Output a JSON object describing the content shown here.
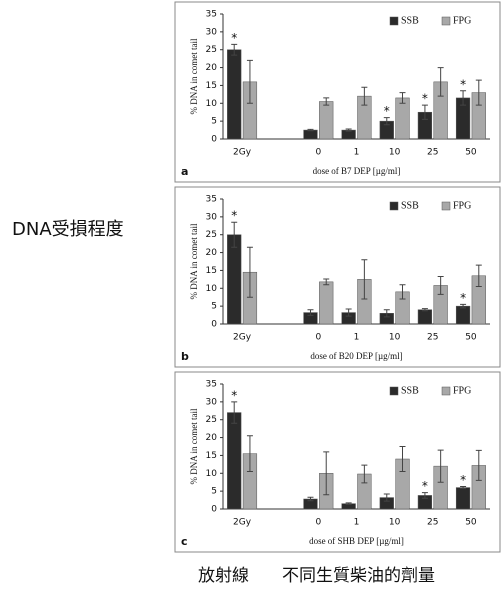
{
  "chart_data": [
    {
      "type": "bar",
      "panel": "a",
      "ylabel": "% DNA in comet tail",
      "xlabel": "dose of B7 DEP [µg/ml]",
      "categories": [
        "2Gy",
        null,
        "0",
        "1",
        "10",
        "25",
        "50"
      ],
      "series": [
        {
          "name": "SSB",
          "color": "#2b2b2b",
          "values": [
            25,
            null,
            2.5,
            2.5,
            5,
            7.5,
            11.5
          ],
          "errors": [
            1.5,
            null,
            0.2,
            0.3,
            1,
            2,
            2
          ],
          "significance": [
            "*",
            null,
            null,
            null,
            "*",
            "*",
            "*"
          ]
        },
        {
          "name": "FPG",
          "color": "#a8a8a8",
          "values": [
            16,
            null,
            10.5,
            12,
            11.5,
            16,
            13
          ],
          "errors": [
            6,
            null,
            1,
            2.5,
            1.5,
            4,
            3.5
          ]
        }
      ],
      "ylim": [
        0,
        35
      ],
      "yticks": [
        0,
        5,
        10,
        15,
        20,
        25,
        30,
        35
      ],
      "legend": "top-right"
    },
    {
      "type": "bar",
      "panel": "b",
      "ylabel": "% DNA in comet tail",
      "xlabel": "dose of B20 DEP [µg/ml]",
      "categories": [
        "2Gy",
        null,
        "0",
        "1",
        "10",
        "25",
        "50"
      ],
      "series": [
        {
          "name": "SSB",
          "color": "#2b2b2b",
          "values": [
            25,
            null,
            3.2,
            3.2,
            3,
            4,
            5
          ],
          "errors": [
            3.5,
            null,
            0.8,
            1,
            1,
            0.3,
            0.5
          ],
          "significance": [
            "*",
            null,
            null,
            null,
            null,
            null,
            "*"
          ]
        },
        {
          "name": "FPG",
          "color": "#a8a8a8",
          "values": [
            14.5,
            null,
            11.8,
            12.5,
            9,
            10.8,
            13.5
          ],
          "errors": [
            7,
            null,
            0.8,
            5.5,
            2,
            2.5,
            3
          ]
        }
      ],
      "ylim": [
        0,
        35
      ],
      "yticks": [
        0,
        5,
        10,
        15,
        20,
        25,
        30,
        35
      ],
      "legend": "top-right"
    },
    {
      "type": "bar",
      "panel": "c",
      "ylabel": "% DNA in comet tail",
      "xlabel": "dose of SHB DEP [µg/ml]",
      "categories": [
        "2Gy",
        null,
        "0",
        "1",
        "10",
        "25",
        "50"
      ],
      "series": [
        {
          "name": "SSB",
          "color": "#2b2b2b",
          "values": [
            27,
            null,
            2.8,
            1.5,
            3.2,
            3.8,
            6
          ],
          "errors": [
            3,
            null,
            0.5,
            0.2,
            1,
            0.8,
            0.3
          ],
          "significance": [
            "*",
            null,
            null,
            null,
            null,
            "*",
            "*"
          ]
        },
        {
          "name": "FPG",
          "color": "#a8a8a8",
          "values": [
            15.5,
            null,
            10,
            9.8,
            14,
            12,
            12.2
          ],
          "errors": [
            5,
            null,
            6,
            2.5,
            3.5,
            4.5,
            4.2
          ]
        }
      ],
      "ylim": [
        0,
        35
      ],
      "yticks": [
        0,
        5,
        10,
        15,
        20,
        25,
        30,
        35
      ],
      "legend": "top-right"
    }
  ],
  "side_label": "DNA受損程度",
  "bottom_labels": [
    "放射線",
    "不同生質柴油的劑量"
  ]
}
